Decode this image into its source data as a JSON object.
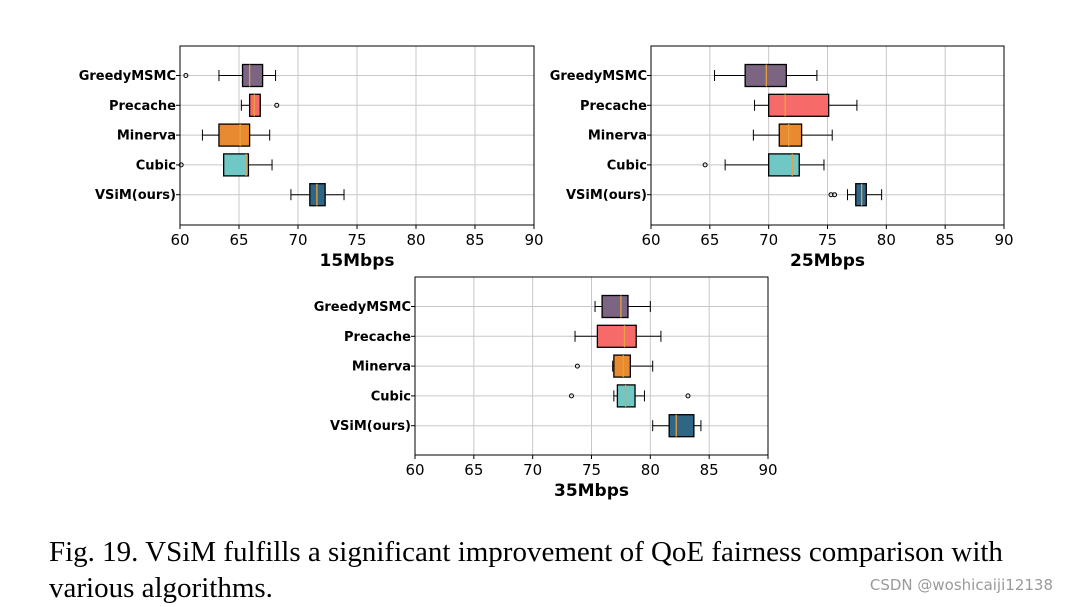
{
  "chart_data": [
    {
      "type": "box",
      "title": "",
      "xlabel": "15Mbps",
      "ylabel": "",
      "xlim": [
        60,
        90
      ],
      "xticks": [
        60,
        65,
        70,
        75,
        80,
        85,
        90
      ],
      "grid": true,
      "categories": [
        "GreedyMSMC",
        "Precache",
        "Minerva",
        "Cubic",
        "VSiM(ours)"
      ],
      "boxes": [
        {
          "name": "GreedyMSMC",
          "whisker_low": 63.3,
          "q1": 65.3,
          "median": 65.9,
          "q3": 67.0,
          "whisker_high": 68.1,
          "outliers": [
            60.5
          ],
          "color": "#7b6582"
        },
        {
          "name": "Precache",
          "whisker_low": 65.2,
          "q1": 65.9,
          "median": 66.3,
          "q3": 66.8,
          "whisker_high": 66.8,
          "outliers": [
            68.2
          ],
          "color": "#f66a6a"
        },
        {
          "name": "Minerva",
          "whisker_low": 61.9,
          "q1": 63.3,
          "median": 65.1,
          "q3": 65.9,
          "whisker_high": 67.6,
          "outliers": [],
          "color": "#e88a30"
        },
        {
          "name": "Cubic",
          "whisker_low": 63.7,
          "q1": 63.7,
          "median": 65.6,
          "q3": 65.8,
          "whisker_high": 67.8,
          "outliers": [
            60.1
          ],
          "color": "#6fc8c6"
        },
        {
          "name": "VSiM(ours)",
          "whisker_low": 69.4,
          "q1": 71.0,
          "median": 71.6,
          "q3": 72.3,
          "whisker_high": 73.9,
          "outliers": [],
          "color": "#2f6585"
        }
      ]
    },
    {
      "type": "box",
      "title": "",
      "xlabel": "25Mbps",
      "ylabel": "",
      "xlim": [
        60,
        90
      ],
      "xticks": [
        60,
        65,
        70,
        75,
        80,
        85,
        90
      ],
      "grid": true,
      "categories": [
        "GreedyMSMC",
        "Precache",
        "Minerva",
        "Cubic",
        "VSiM(ours)"
      ],
      "boxes": [
        {
          "name": "GreedyMSMC",
          "whisker_low": 65.4,
          "q1": 68.0,
          "median": 69.8,
          "q3": 71.5,
          "whisker_high": 74.1,
          "outliers": [],
          "color": "#7b6582"
        },
        {
          "name": "Precache",
          "whisker_low": 68.8,
          "q1": 70.0,
          "median": 71.4,
          "q3": 75.1,
          "whisker_high": 77.5,
          "outliers": [],
          "color": "#f66a6a"
        },
        {
          "name": "Minerva",
          "whisker_low": 68.7,
          "q1": 70.9,
          "median": 71.7,
          "q3": 72.8,
          "whisker_high": 75.4,
          "outliers": [],
          "color": "#e88a30"
        },
        {
          "name": "Cubic",
          "whisker_low": 66.3,
          "q1": 70.0,
          "median": 72.0,
          "q3": 72.6,
          "whisker_high": 74.7,
          "outliers": [
            64.6
          ],
          "color": "#6fc8c6"
        },
        {
          "name": "VSiM(ours)",
          "whisker_low": 76.7,
          "q1": 77.4,
          "median": 77.9,
          "q3": 78.3,
          "whisker_high": 79.6,
          "outliers": [
            75.3,
            75.6
          ],
          "color": "#2f6585"
        }
      ]
    },
    {
      "type": "box",
      "title": "",
      "xlabel": "35Mbps",
      "ylabel": "",
      "xlim": [
        60,
        90
      ],
      "xticks": [
        60,
        65,
        70,
        75,
        80,
        85,
        90
      ],
      "grid": true,
      "categories": [
        "GreedyMSMC",
        "Precache",
        "Minerva",
        "Cubic",
        "VSiM(ours)"
      ],
      "boxes": [
        {
          "name": "GreedyMSMC",
          "whisker_low": 75.3,
          "q1": 75.9,
          "median": 77.5,
          "q3": 78.1,
          "whisker_high": 80.0,
          "outliers": [],
          "color": "#7b6582"
        },
        {
          "name": "Precache",
          "whisker_low": 73.6,
          "q1": 75.5,
          "median": 77.8,
          "q3": 78.8,
          "whisker_high": 80.9,
          "outliers": [],
          "color": "#f66a6a"
        },
        {
          "name": "Minerva",
          "whisker_low": 76.8,
          "q1": 76.9,
          "median": 77.7,
          "q3": 78.3,
          "whisker_high": 80.2,
          "outliers": [
            73.8
          ],
          "color": "#e88a30"
        },
        {
          "name": "Cubic",
          "whisker_low": 76.9,
          "q1": 77.2,
          "median": 77.9,
          "q3": 78.7,
          "whisker_high": 79.5,
          "outliers": [
            73.3,
            83.2
          ],
          "color": "#6fc8c6"
        },
        {
          "name": "VSiM(ours)",
          "whisker_low": 80.2,
          "q1": 81.6,
          "median": 82.2,
          "q3": 83.7,
          "whisker_high": 84.3,
          "outliers": [],
          "color": "#2f6585"
        }
      ]
    }
  ],
  "style": {
    "median_color": "#e8a040",
    "grid_color": "#c8c8c8",
    "box_edge_color": "#000000"
  },
  "caption": "Fig. 19.   VSiM fulfills a significant improvement of QoE fairness comparison with various algorithms.",
  "watermark": "CSDN @woshicaiji12138"
}
